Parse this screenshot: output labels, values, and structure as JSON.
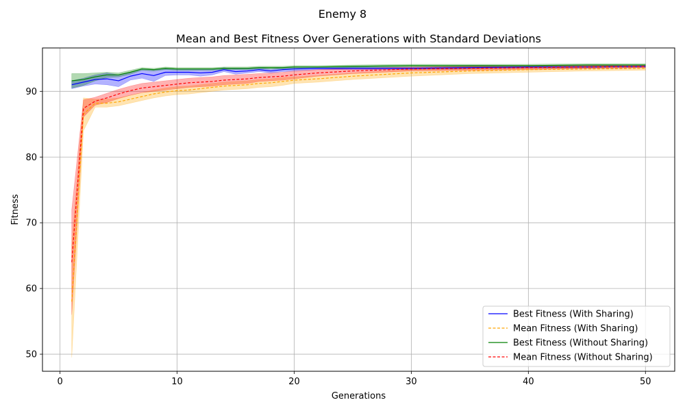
{
  "figure": {
    "suptitle": "Enemy 8"
  },
  "chart_data": {
    "type": "line",
    "title": "Mean and Best Fitness Over Generations with Standard Deviations",
    "xlabel": "Generations",
    "ylabel": "Fitness",
    "xlim": [
      -1.5,
      52.5
    ],
    "ylim": [
      47.4,
      96.6
    ],
    "xticks": [
      0,
      10,
      20,
      30,
      40,
      50
    ],
    "yticks": [
      50,
      60,
      70,
      80,
      90
    ],
    "grid": true,
    "legend_position": "lower right",
    "x": [
      1,
      2,
      3,
      4,
      5,
      6,
      7,
      8,
      9,
      10,
      11,
      12,
      13,
      14,
      15,
      16,
      17,
      18,
      19,
      20,
      22,
      25,
      30,
      35,
      40,
      45,
      50
    ],
    "series": [
      {
        "name": "Best Fitness (With Sharing)",
        "color": "#0000ff",
        "line_style": "solid",
        "band_color": "#0000ff",
        "values": [
          91.0,
          91.4,
          91.8,
          91.9,
          91.6,
          92.3,
          92.7,
          92.4,
          92.9,
          92.9,
          92.9,
          92.8,
          92.9,
          93.3,
          93.0,
          93.1,
          93.3,
          93.1,
          93.3,
          93.4,
          93.5,
          93.5,
          93.5,
          93.6,
          93.7,
          93.7,
          93.8
        ],
        "std": [
          0.6,
          0.6,
          0.7,
          0.9,
          0.9,
          0.6,
          0.7,
          0.9,
          0.5,
          0.4,
          0.4,
          0.5,
          0.4,
          0.3,
          0.4,
          0.3,
          0.3,
          0.3,
          0.3,
          0.3,
          0.2,
          0.2,
          0.2,
          0.2,
          0.2,
          0.2,
          0.2
        ]
      },
      {
        "name": "Mean Fitness (With Sharing)",
        "color": "#ffa500",
        "line_style": "dashed",
        "band_color": "#ffa500",
        "values": [
          58.0,
          86.5,
          88.2,
          88.2,
          88.4,
          88.8,
          89.2,
          89.6,
          89.9,
          90.1,
          90.2,
          90.4,
          90.6,
          90.8,
          90.9,
          91.0,
          91.2,
          91.3,
          91.5,
          91.7,
          91.9,
          92.3,
          92.8,
          93.1,
          93.3,
          93.4,
          93.5
        ],
        "std": [
          8.5,
          2.5,
          0.6,
          0.6,
          0.6,
          0.6,
          0.6,
          0.6,
          0.6,
          0.6,
          0.6,
          0.6,
          0.6,
          0.6,
          0.6,
          0.6,
          0.6,
          0.6,
          0.6,
          0.5,
          0.5,
          0.5,
          0.5,
          0.4,
          0.4,
          0.3,
          0.3
        ]
      },
      {
        "name": "Best Fitness (Without Sharing)",
        "color": "#008000",
        "line_style": "solid",
        "band_color": "#008000",
        "values": [
          91.6,
          91.8,
          92.2,
          92.5,
          92.5,
          92.9,
          93.4,
          93.3,
          93.5,
          93.4,
          93.4,
          93.4,
          93.4,
          93.5,
          93.5,
          93.5,
          93.6,
          93.6,
          93.6,
          93.7,
          93.7,
          93.8,
          93.9,
          93.9,
          93.9,
          94.0,
          94.0
        ],
        "std": [
          1.1,
          0.9,
          0.6,
          0.4,
          0.3,
          0.3,
          0.2,
          0.2,
          0.2,
          0.2,
          0.2,
          0.2,
          0.2,
          0.2,
          0.2,
          0.2,
          0.2,
          0.2,
          0.2,
          0.2,
          0.2,
          0.2,
          0.2,
          0.2,
          0.2,
          0.2,
          0.2
        ]
      },
      {
        "name": "Mean Fitness (Without Sharing)",
        "color": "#ff0000",
        "line_style": "dashed",
        "band_color": "#ff0000",
        "values": [
          64.0,
          87.4,
          88.5,
          89.0,
          89.6,
          90.1,
          90.5,
          90.7,
          90.9,
          91.1,
          91.3,
          91.4,
          91.5,
          91.7,
          91.8,
          91.9,
          92.1,
          92.2,
          92.3,
          92.5,
          92.8,
          93.1,
          93.4,
          93.5,
          93.6,
          93.7,
          93.8
        ],
        "std": [
          8.0,
          1.3,
          0.6,
          0.7,
          0.7,
          0.7,
          0.7,
          0.7,
          0.7,
          0.7,
          0.7,
          0.7,
          0.7,
          0.7,
          0.7,
          0.7,
          0.6,
          0.6,
          0.6,
          0.6,
          0.5,
          0.4,
          0.3,
          0.3,
          0.3,
          0.2,
          0.2
        ]
      }
    ]
  }
}
